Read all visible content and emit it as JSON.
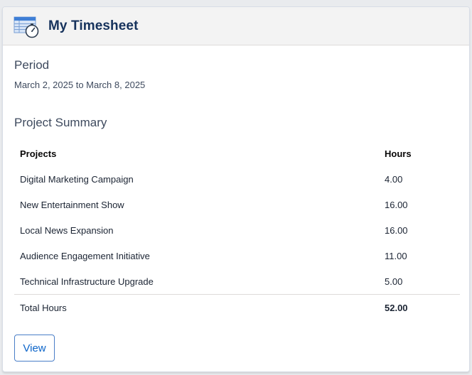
{
  "header": {
    "title": "My Timesheet",
    "icon": "timesheet-stopwatch-icon"
  },
  "period": {
    "label": "Period",
    "value": "March 2, 2025 to March 8, 2025"
  },
  "summary": {
    "title": "Project Summary",
    "columns": [
      "Projects",
      "Hours"
    ],
    "rows": [
      {
        "project": "Digital Marketing Campaign",
        "hours": "4.00"
      },
      {
        "project": "New Entertainment Show",
        "hours": "16.00"
      },
      {
        "project": "Local News Expansion",
        "hours": "16.00"
      },
      {
        "project": "Audience Engagement Initiative",
        "hours": "11.00"
      },
      {
        "project": "Technical Infrastructure Upgrade",
        "hours": "5.00"
      }
    ],
    "total_label": "Total Hours",
    "total_value": "52.00"
  },
  "actions": {
    "view_label": "View"
  },
  "colors": {
    "title": "#16325c",
    "accent": "#0b64c9",
    "header_bg": "#f3f3f3"
  }
}
